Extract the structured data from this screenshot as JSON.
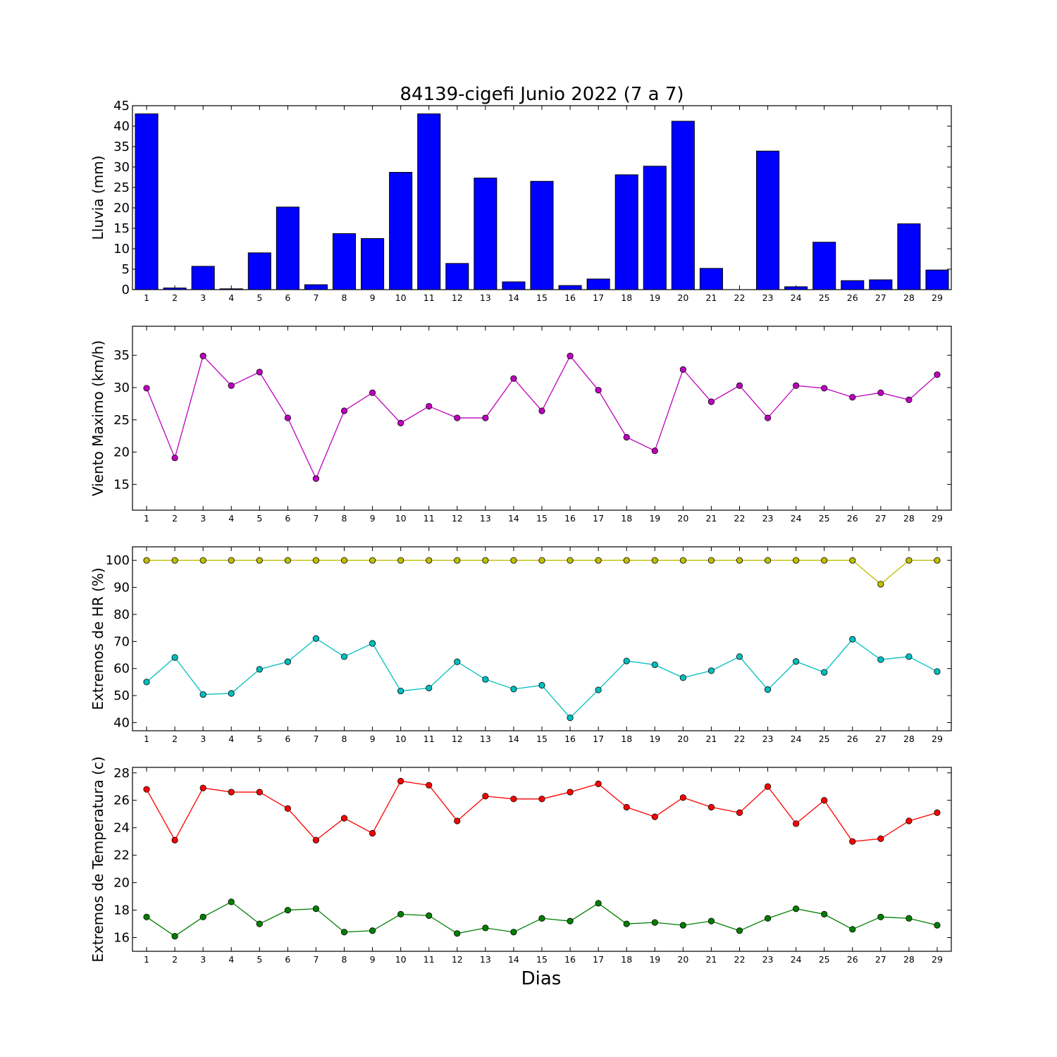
{
  "title": "84139-cigefi Junio 2022  (7 a 7)",
  "xlabel": "Dias",
  "chart_data": [
    {
      "type": "bar",
      "ylabel": "Lluvia (mm)",
      "ylim": [
        0,
        45
      ],
      "yticks": [
        0,
        5,
        10,
        15,
        20,
        25,
        30,
        35,
        40,
        45
      ],
      "x": [
        1,
        2,
        3,
        4,
        5,
        6,
        7,
        8,
        9,
        10,
        11,
        12,
        13,
        14,
        15,
        16,
        17,
        18,
        19,
        20,
        21,
        22,
        23,
        24,
        25,
        26,
        27,
        28,
        29
      ],
      "series": [
        {
          "color": "#0000ff",
          "values": [
            43,
            0.4,
            5.7,
            0.2,
            9,
            20.2,
            1.2,
            13.7,
            12.5,
            28.7,
            43,
            6.4,
            27.3,
            1.9,
            26.5,
            1,
            2.6,
            28.1,
            30.2,
            41.2,
            5.2,
            0,
            33.9,
            0.7,
            11.6,
            2.2,
            2.4,
            16.1,
            4.8
          ]
        }
      ]
    },
    {
      "type": "line",
      "ylabel": "Viento Maximo (km/h)",
      "ylim": [
        11,
        39.5
      ],
      "yticks": [
        15,
        20,
        25,
        30,
        35
      ],
      "x": [
        1,
        2,
        3,
        4,
        5,
        6,
        7,
        8,
        9,
        10,
        11,
        12,
        13,
        14,
        15,
        16,
        17,
        18,
        19,
        20,
        21,
        22,
        23,
        24,
        25,
        26,
        27,
        28,
        29
      ],
      "series": [
        {
          "color": "#bf00bf",
          "values": [
            29.9,
            19.1,
            34.9,
            30.3,
            32.4,
            25.3,
            15.9,
            26.4,
            29.2,
            24.5,
            27.1,
            25.3,
            25.3,
            31.4,
            26.4,
            34.9,
            29.6,
            22.3,
            20.2,
            32.8,
            27.8,
            30.3,
            25.3,
            30.3,
            29.9,
            28.5,
            29.2,
            28.1,
            32.0
          ]
        }
      ]
    },
    {
      "type": "line",
      "ylabel": "Extremos de HR (%)",
      "ylim": [
        37,
        105
      ],
      "yticks": [
        40,
        50,
        60,
        70,
        80,
        90,
        100
      ],
      "x": [
        1,
        2,
        3,
        4,
        5,
        6,
        7,
        8,
        9,
        10,
        11,
        12,
        13,
        14,
        15,
        16,
        17,
        18,
        19,
        20,
        21,
        22,
        23,
        24,
        25,
        26,
        27,
        28,
        29
      ],
      "series": [
        {
          "color": "#bfbf00",
          "values": [
            100,
            100,
            100,
            100,
            100,
            100,
            100,
            100,
            100,
            100,
            100,
            100,
            100,
            100,
            100,
            100,
            100,
            100,
            100,
            100,
            100,
            100,
            100,
            100,
            100,
            100,
            91.2,
            100,
            100
          ]
        },
        {
          "color": "#00bfbf",
          "values": [
            55,
            64.1,
            50.4,
            50.8,
            59.7,
            62.5,
            71.1,
            64.4,
            69.3,
            51.7,
            52.8,
            62.5,
            56,
            52.4,
            53.8,
            41.8,
            52.1,
            62.8,
            61.4,
            56.6,
            59.2,
            64.4,
            52.2,
            62.6,
            58.6,
            70.8,
            63.3,
            64.4,
            58.9
          ]
        }
      ]
    },
    {
      "type": "line",
      "ylabel": "Extremos de Temperatura (c)",
      "ylim": [
        15.0,
        28.4
      ],
      "yticks": [
        16,
        18,
        20,
        22,
        24,
        26,
        28
      ],
      "x": [
        1,
        2,
        3,
        4,
        5,
        6,
        7,
        8,
        9,
        10,
        11,
        12,
        13,
        14,
        15,
        16,
        17,
        18,
        19,
        20,
        21,
        22,
        23,
        24,
        25,
        26,
        27,
        28,
        29
      ],
      "series": [
        {
          "color": "#ff0000",
          "values": [
            26.8,
            23.1,
            26.9,
            26.6,
            26.6,
            25.4,
            23.1,
            24.7,
            23.6,
            27.4,
            27.1,
            24.5,
            26.3,
            26.1,
            26.1,
            26.6,
            27.2,
            25.5,
            24.8,
            26.2,
            25.5,
            25.1,
            27,
            24.3,
            26,
            23,
            23.2,
            24.5,
            25.1
          ]
        },
        {
          "color": "#007f00",
          "values": [
            17.5,
            16.1,
            17.5,
            18.6,
            17,
            18,
            18.1,
            16.4,
            16.5,
            17.7,
            17.6,
            16.3,
            16.7,
            16.4,
            17.4,
            17.2,
            18.5,
            17,
            17.1,
            16.9,
            17.2,
            16.5,
            17.4,
            18.1,
            17.7,
            16.6,
            17.5,
            17.4,
            16.9
          ]
        }
      ]
    }
  ]
}
